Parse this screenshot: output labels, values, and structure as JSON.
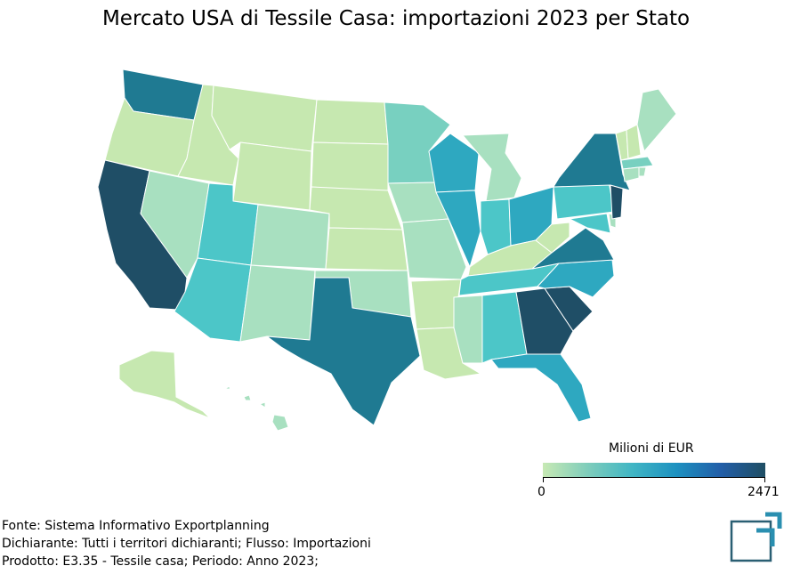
{
  "title": "Mercato USA di Tessile Casa: importazioni 2023 per Stato",
  "legend": {
    "title": "Milioni di EUR",
    "min_label": "0",
    "max_label": "2471",
    "min": 0,
    "max": 2471,
    "colors": [
      "#c7e9b4",
      "#7fcdbb",
      "#41b6c4",
      "#1d91c0",
      "#225ea8",
      "#1f4e63"
    ]
  },
  "map_colors": {
    "very_low": "#c6e8b0",
    "low": "#a8e0c0",
    "low_mid": "#78d0c0",
    "mid": "#4cc6c8",
    "mid_high": "#2ea8c0",
    "high": "#1f7a92",
    "very_high": "#1f4e66"
  },
  "footer": {
    "line1": "Fonte: Sistema Informativo Exportplanning",
    "line2": "Dichiarante: Tutti i territori dichiaranti; Flusso: Importazioni",
    "line3": "Prodotto: E3.35 - Tessile casa; Periodo: Anno 2023;"
  }
}
